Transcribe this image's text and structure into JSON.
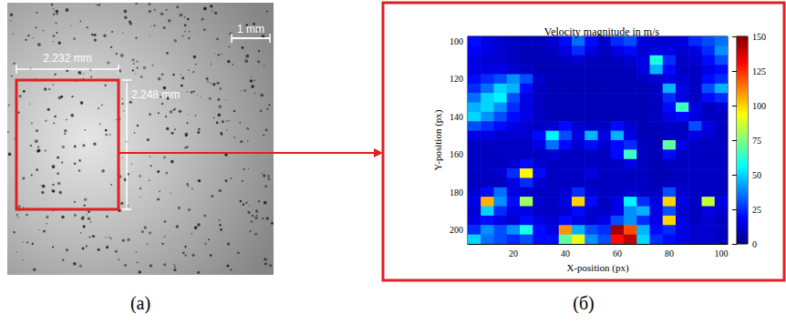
{
  "photo": {
    "panel_label": "(a)",
    "scale_bar": "1 mm",
    "roi_width": "2.232 mm",
    "roi_height": "2.248 mm"
  },
  "chart_data": {
    "type": "heatmap",
    "panel_label": "(б)",
    "title": "Velocity magnitude in m/s",
    "x_label": "X-position (px)",
    "y_label": "Y-position (px)",
    "x": [
      5,
      10,
      15,
      20,
      25,
      30,
      35,
      40,
      45,
      50,
      55,
      60,
      65,
      70,
      75,
      80,
      85,
      90,
      95,
      100
    ],
    "y": [
      100,
      105,
      110,
      115,
      120,
      125,
      130,
      135,
      140,
      145,
      150,
      155,
      160,
      165,
      170,
      175,
      180,
      185,
      190,
      195,
      200,
      205
    ],
    "z": [
      [
        20,
        15,
        12,
        10,
        10,
        10,
        12,
        20,
        35,
        20,
        12,
        25,
        30,
        15,
        12,
        12,
        15,
        25,
        30,
        35
      ],
      [
        18,
        15,
        12,
        10,
        8,
        8,
        10,
        15,
        25,
        15,
        10,
        15,
        20,
        12,
        15,
        15,
        12,
        15,
        25,
        40
      ],
      [
        15,
        12,
        12,
        10,
        8,
        8,
        8,
        10,
        12,
        10,
        8,
        10,
        12,
        15,
        60,
        25,
        10,
        12,
        20,
        30
      ],
      [
        15,
        15,
        15,
        12,
        10,
        8,
        8,
        8,
        8,
        8,
        8,
        8,
        10,
        15,
        45,
        20,
        10,
        10,
        15,
        20
      ],
      [
        20,
        25,
        30,
        40,
        30,
        12,
        8,
        8,
        8,
        8,
        8,
        8,
        8,
        10,
        12,
        15,
        12,
        10,
        20,
        25
      ],
      [
        25,
        35,
        50,
        45,
        20,
        10,
        8,
        8,
        8,
        8,
        8,
        8,
        8,
        8,
        10,
        45,
        15,
        10,
        30,
        45
      ],
      [
        35,
        50,
        55,
        30,
        15,
        10,
        8,
        8,
        8,
        8,
        8,
        8,
        8,
        8,
        10,
        25,
        15,
        10,
        20,
        25
      ],
      [
        45,
        50,
        40,
        25,
        15,
        10,
        8,
        8,
        8,
        8,
        8,
        8,
        8,
        8,
        10,
        20,
        65,
        15,
        10,
        12
      ],
      [
        50,
        40,
        30,
        20,
        15,
        10,
        8,
        8,
        8,
        8,
        8,
        8,
        8,
        8,
        10,
        15,
        20,
        15,
        10,
        10
      ],
      [
        30,
        25,
        20,
        15,
        12,
        10,
        12,
        20,
        12,
        10,
        10,
        20,
        12,
        8,
        8,
        10,
        10,
        30,
        15,
        10
      ],
      [
        15,
        15,
        12,
        12,
        12,
        20,
        55,
        30,
        15,
        45,
        15,
        45,
        15,
        8,
        8,
        10,
        10,
        15,
        12,
        10
      ],
      [
        10,
        10,
        10,
        10,
        10,
        15,
        35,
        20,
        12,
        20,
        12,
        20,
        25,
        10,
        8,
        70,
        15,
        10,
        10,
        10
      ],
      [
        10,
        10,
        10,
        10,
        10,
        10,
        12,
        10,
        10,
        10,
        10,
        20,
        65,
        10,
        8,
        20,
        10,
        10,
        10,
        10
      ],
      [
        10,
        10,
        10,
        12,
        20,
        12,
        10,
        10,
        10,
        10,
        10,
        10,
        15,
        10,
        8,
        10,
        10,
        10,
        10,
        10
      ],
      [
        10,
        10,
        12,
        25,
        95,
        20,
        10,
        10,
        10,
        15,
        10,
        10,
        10,
        10,
        8,
        8,
        10,
        10,
        10,
        10
      ],
      [
        10,
        10,
        10,
        15,
        25,
        12,
        10,
        10,
        10,
        10,
        10,
        10,
        10,
        10,
        8,
        10,
        10,
        10,
        10,
        10
      ],
      [
        12,
        20,
        35,
        15,
        12,
        10,
        10,
        12,
        25,
        12,
        10,
        10,
        12,
        10,
        10,
        30,
        12,
        10,
        10,
        10
      ],
      [
        15,
        105,
        40,
        20,
        80,
        12,
        10,
        15,
        100,
        20,
        10,
        15,
        55,
        25,
        15,
        100,
        15,
        10,
        85,
        15
      ],
      [
        12,
        50,
        25,
        15,
        15,
        10,
        10,
        12,
        20,
        12,
        10,
        15,
        40,
        45,
        15,
        30,
        12,
        10,
        15,
        12
      ],
      [
        15,
        20,
        15,
        12,
        20,
        15,
        12,
        20,
        15,
        12,
        15,
        30,
        40,
        25,
        15,
        100,
        15,
        10,
        12,
        10
      ],
      [
        25,
        40,
        30,
        40,
        60,
        20,
        15,
        110,
        45,
        30,
        25,
        145,
        120,
        45,
        20,
        25,
        15,
        12,
        12,
        10
      ],
      [
        50,
        35,
        30,
        25,
        30,
        20,
        20,
        70,
        90,
        40,
        30,
        130,
        140,
        50,
        25,
        20,
        15,
        12,
        12,
        10
      ]
    ],
    "xlim": [
      2.5,
      102.5
    ],
    "ylim": [
      97.5,
      207.5
    ],
    "xticks": [
      20,
      40,
      60,
      80,
      100
    ],
    "yticks": [
      100,
      120,
      140,
      160,
      180,
      200
    ],
    "colorbar": {
      "range": [
        0,
        150
      ],
      "ticks": [
        0,
        25,
        50,
        75,
        100,
        125,
        150
      ]
    }
  }
}
